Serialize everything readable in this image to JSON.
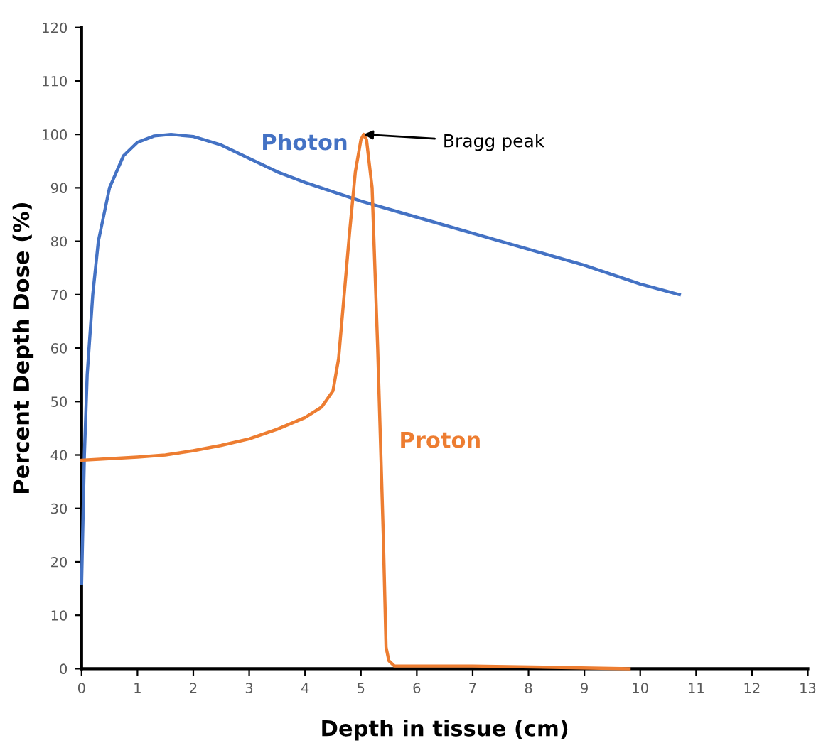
{
  "chart_data": {
    "type": "line",
    "xlabel": "Depth in tissue (cm)",
    "ylabel": "Percent Depth Dose (%)",
    "xlim": [
      0,
      13
    ],
    "xticks": [
      0,
      1,
      2,
      3,
      4,
      5,
      6,
      7,
      8,
      9,
      10,
      11,
      12,
      13
    ],
    "ylim": [
      0,
      120
    ],
    "yticks": [
      0,
      10,
      20,
      30,
      40,
      50,
      60,
      70,
      80,
      90,
      100,
      110,
      120
    ],
    "grid": false,
    "legend": false,
    "marker": "none",
    "line_style": "solid",
    "series": [
      {
        "name": "Photon",
        "color": "#4472c4",
        "x": [
          0,
          0.05,
          0.1,
          0.2,
          0.3,
          0.5,
          0.75,
          1,
          1.3,
          1.6,
          2,
          2.5,
          3,
          3.5,
          4,
          5,
          6,
          7,
          8,
          9,
          10,
          10.7
        ],
        "values": [
          16,
          40,
          55,
          70,
          80,
          90,
          96,
          98.5,
          99.7,
          100,
          99.6,
          98,
          95.5,
          93,
          91,
          87.5,
          84.5,
          81.5,
          78.5,
          75.5,
          72,
          70
        ]
      },
      {
        "name": "Proton",
        "color": "#ed7d31",
        "x": [
          0,
          1,
          1.5,
          2,
          2.5,
          3,
          3.5,
          4,
          4.3,
          4.5,
          4.6,
          4.7,
          4.8,
          4.9,
          5,
          5.05,
          5.1,
          5.2,
          5.3,
          5.4,
          5.45,
          5.5,
          5.6,
          7,
          9.8
        ],
        "values": [
          39,
          39.6,
          40,
          40.8,
          41.8,
          43,
          44.8,
          47,
          49,
          52,
          58,
          70,
          82,
          93,
          99,
          100,
          99,
          90,
          60,
          25,
          4,
          1.5,
          0.5,
          0.5,
          0
        ]
      }
    ],
    "annotations": [
      {
        "text": "Bragg peak",
        "x": 5.05,
        "y": 100
      }
    ]
  }
}
